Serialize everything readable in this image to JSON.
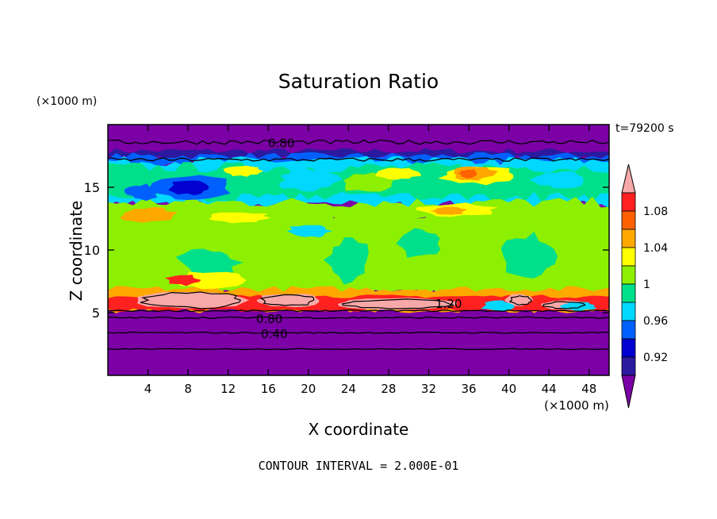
{
  "chart_data": {
    "type": "heatmap",
    "title": "Saturation Ratio",
    "xlabel": "X coordinate",
    "ylabel": "Z coordinate",
    "x_unit": "(×1000 m)",
    "y_unit": "(×1000 m)",
    "time_label": "t=79200 s",
    "footer": "CONTOUR INTERVAL = 2.000E-01",
    "xlim": [
      0,
      50
    ],
    "ylim": [
      0,
      20
    ],
    "x_ticks": [
      4,
      8,
      12,
      16,
      20,
      24,
      28,
      32,
      36,
      40,
      44,
      48
    ],
    "y_ticks": [
      5,
      10,
      15
    ],
    "colorbar": {
      "labels": [
        "0.92",
        "0.96",
        "1",
        "1.04",
        "1.08"
      ],
      "levels": [
        0.9,
        0.92,
        0.94,
        0.96,
        0.98,
        1.0,
        1.02,
        1.04,
        1.06,
        1.08,
        1.1
      ],
      "colors": [
        "#7b00a6",
        "#2b1aa0",
        "#0000d0",
        "#0060ff",
        "#00d8ff",
        "#00e08a",
        "#8cf000",
        "#ffff00",
        "#ffa800",
        "#ff6000",
        "#ff2020",
        "#f7a8a8"
      ]
    },
    "contour_labels": [
      {
        "text": "0.80",
        "x": 17.3,
        "y": 18.5
      },
      {
        "text": "0.80",
        "x": 16.1,
        "y": 4.5
      },
      {
        "text": "0.40",
        "x": 16.6,
        "y": 3.3
      },
      {
        "text": "1.20",
        "x": 34.0,
        "y": 5.7
      }
    ]
  }
}
